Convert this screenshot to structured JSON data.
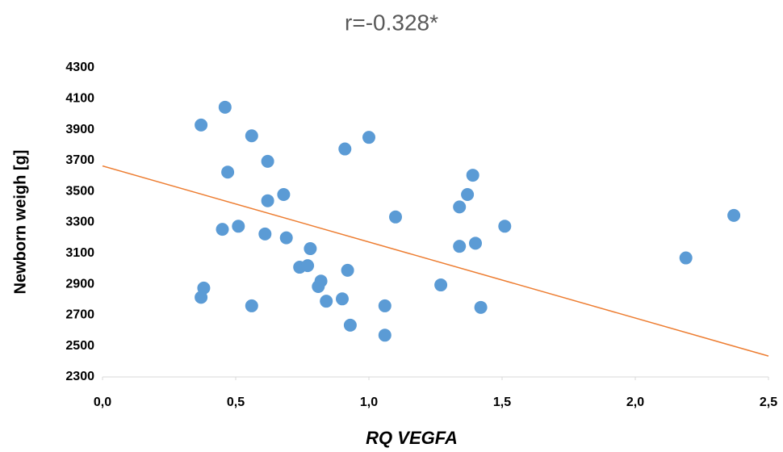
{
  "chart_data": {
    "type": "scatter",
    "title": "r=-0.328*",
    "x_label": "RQ VEGFA",
    "y_label": "Newborn weigh [g]",
    "color": "#5b9bd5",
    "x": [
      0.37,
      0.46,
      0.56,
      0.47,
      0.62,
      0.62,
      0.68,
      0.91,
      1.0,
      0.45,
      0.51,
      0.61,
      0.69,
      0.78,
      0.74,
      0.77,
      0.92,
      0.38,
      0.37,
      0.56,
      0.81,
      0.82,
      0.84,
      0.9,
      0.93,
      1.06,
      1.06,
      1.1,
      1.27,
      1.34,
      1.37,
      1.39,
      1.34,
      1.4,
      1.42,
      1.51,
      2.19,
      2.37
    ],
    "values": [
      3930,
      4045,
      3860,
      3625,
      3695,
      3440,
      3480,
      3775,
      3850,
      3255,
      3275,
      3225,
      3200,
      3130,
      3010,
      3020,
      2990,
      2875,
      2815,
      2760,
      2885,
      2920,
      2790,
      2805,
      2635,
      2760,
      2570,
      3335,
      2895,
      3400,
      3480,
      3605,
      3145,
      3165,
      2750,
      3275,
      3070,
      3345
    ],
    "trendline": {
      "x": [
        0,
        2.5
      ],
      "values": [
        3665,
        2435
      ],
      "color": "#ed7d31"
    },
    "xlim": [
      0,
      2.5
    ],
    "xticks": [
      {
        "value": 0,
        "label": "0,0"
      },
      {
        "value": 0.5,
        "label": "0,5"
      },
      {
        "value": 1,
        "label": "1,0"
      },
      {
        "value": 1.5,
        "label": "1,5"
      },
      {
        "value": 2,
        "label": "2,0"
      },
      {
        "value": 2.5,
        "label": "2,5"
      }
    ],
    "ylim": [
      2300,
      4300
    ],
    "yticks": [
      2300,
      2500,
      2700,
      2900,
      3100,
      3300,
      3500,
      3700,
      3900,
      4100,
      4300
    ]
  }
}
